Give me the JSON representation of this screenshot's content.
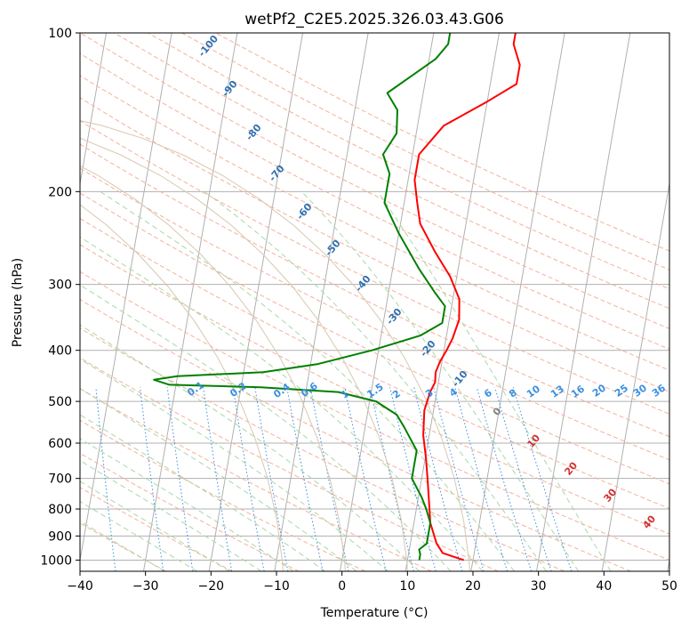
{
  "chart_data": {
    "type": "line",
    "subtype": "skew-t log-p diagram",
    "title": "wetPf2_C2E5.2025.326.03.43.G06",
    "xlabel": "Temperature (°C)",
    "ylabel": "Pressure (hPa)",
    "xlim": [
      -40,
      50
    ],
    "ylim": [
      1050,
      100
    ],
    "y_scale": "log",
    "x_ticks": [
      "−40",
      "−30",
      "−20",
      "−10",
      "0",
      "10",
      "20",
      "30",
      "40",
      "50"
    ],
    "y_ticks": [
      "100",
      "200",
      "300",
      "400",
      "500",
      "600",
      "700",
      "800",
      "900",
      "1000"
    ],
    "grid": true,
    "series": [
      {
        "role": "temperature",
        "color": "#ff0000",
        "points": [
          [
            18.6,
            1000
          ],
          [
            15.2,
            970
          ],
          [
            14.0,
            930
          ],
          [
            12.5,
            850
          ],
          [
            12.0,
            800
          ],
          [
            10.9,
            700
          ],
          [
            10.1,
            640
          ],
          [
            9.1,
            580
          ],
          [
            8.6,
            520
          ],
          [
            9.0,
            480
          ],
          [
            9.5,
            460
          ],
          [
            9.3,
            440
          ],
          [
            9.7,
            420
          ],
          [
            10.4,
            400
          ],
          [
            11.0,
            380
          ],
          [
            11.5,
            350
          ],
          [
            11.0,
            320
          ],
          [
            9.0,
            290
          ],
          [
            6.0,
            260
          ],
          [
            3.0,
            230
          ],
          [
            2.0,
            210
          ],
          [
            1.0,
            190
          ],
          [
            1.0,
            170
          ],
          [
            4.0,
            150
          ],
          [
            10.0,
            135
          ],
          [
            14.0,
            125
          ],
          [
            14.0,
            115
          ],
          [
            12.5,
            105
          ],
          [
            12.5,
            100
          ]
        ]
      },
      {
        "role": "dewpoint",
        "color": "#008000",
        "points": [
          [
            11.8,
            1000
          ],
          [
            11.8,
            975
          ],
          [
            11.5,
            955
          ],
          [
            12.5,
            930
          ],
          [
            12.5,
            880
          ],
          [
            12.5,
            850
          ],
          [
            11.5,
            800
          ],
          [
            10.5,
            760
          ],
          [
            8.5,
            700
          ],
          [
            8.5,
            650
          ],
          [
            8.5,
            620
          ],
          [
            6.0,
            560
          ],
          [
            4.5,
            530
          ],
          [
            1.0,
            500
          ],
          [
            -5.0,
            480
          ],
          [
            -17.0,
            470
          ],
          [
            -31.0,
            465
          ],
          [
            -33.5,
            455
          ],
          [
            -30.0,
            448
          ],
          [
            -17.0,
            440
          ],
          [
            -9.0,
            425
          ],
          [
            -1.0,
            400
          ],
          [
            6.0,
            375
          ],
          [
            9.0,
            355
          ],
          [
            9.0,
            330
          ],
          [
            7.0,
            310
          ],
          [
            4.0,
            280
          ],
          [
            0.0,
            240
          ],
          [
            -3.0,
            210
          ],
          [
            -3.0,
            195
          ],
          [
            -3.0,
            185
          ],
          [
            -4.5,
            170
          ],
          [
            -3.0,
            155
          ],
          [
            -3.5,
            140
          ],
          [
            -5.5,
            130
          ],
          [
            -2.0,
            120
          ],
          [
            1.0,
            112
          ],
          [
            2.5,
            105
          ],
          [
            2.5,
            100
          ]
        ]
      }
    ],
    "dry_adiabat_labels": [
      "-100",
      "-90",
      "-80",
      "-70",
      "-60",
      "-50",
      "-40",
      "-30",
      "-20",
      "-10"
    ],
    "mixing_ratio_labels": [
      "0.1",
      "0.2",
      "0.4",
      "0.6",
      "1",
      "1.5",
      "2",
      "3",
      "4",
      "6",
      "8",
      "10",
      "13",
      "16",
      "20",
      "25",
      "30",
      "36"
    ],
    "moist_adiabat_labels": [
      "0",
      "10",
      "20",
      "30",
      "40"
    ]
  }
}
